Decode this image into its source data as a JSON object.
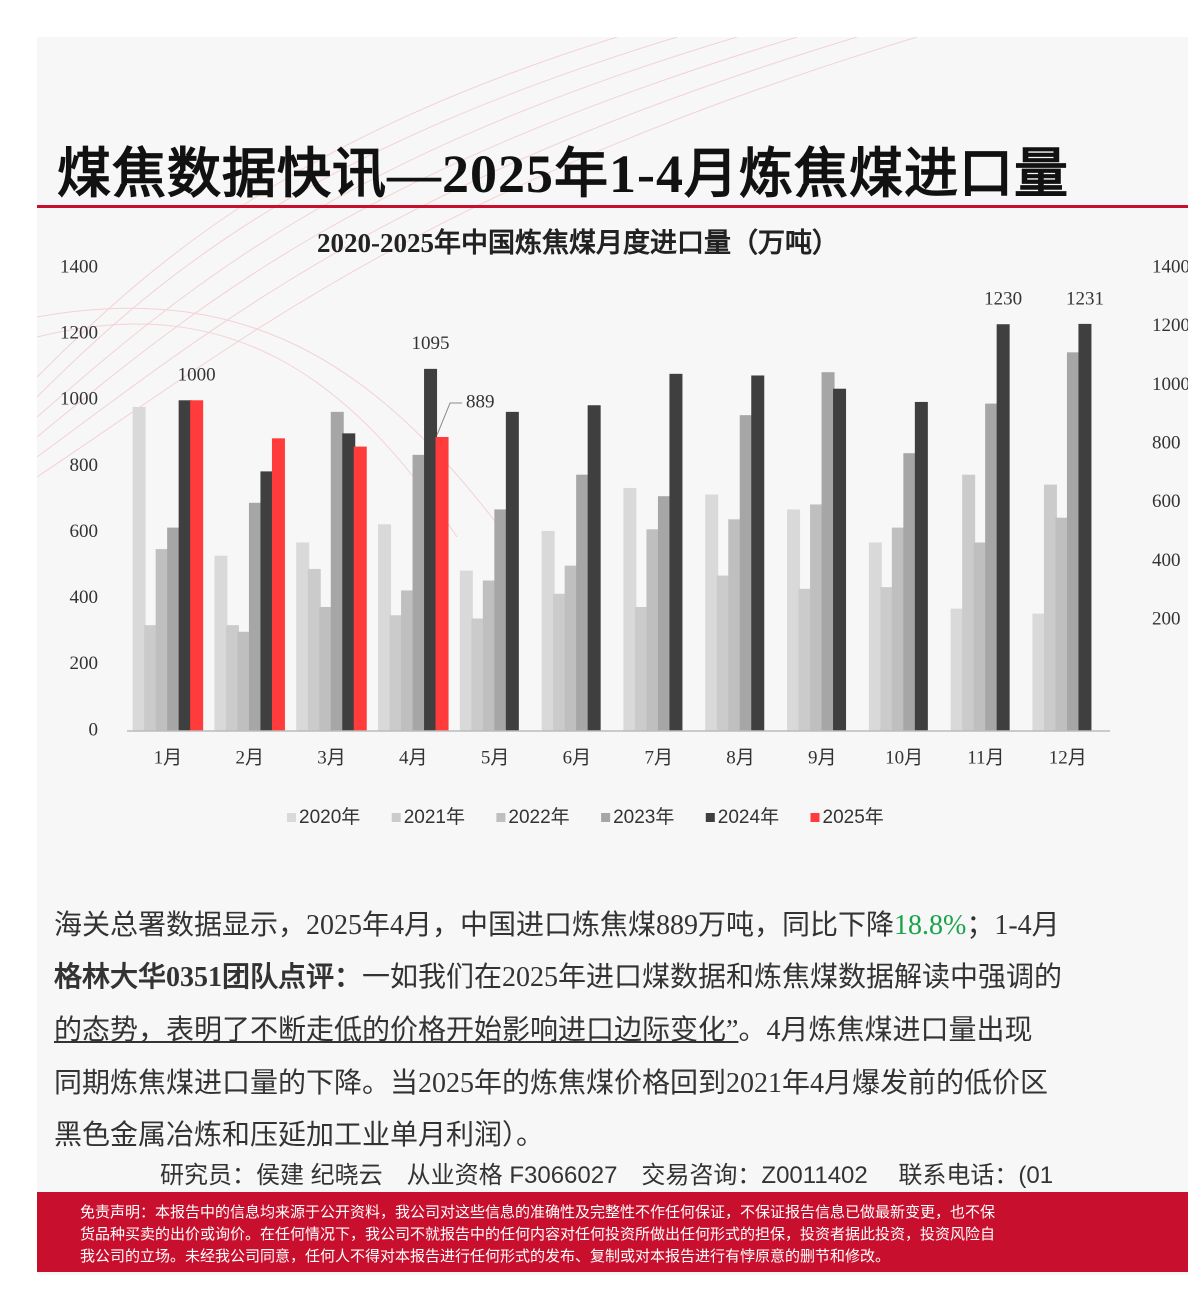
{
  "header": {
    "title": "煤焦数据快讯—2025年1-4月炼焦煤进口量"
  },
  "chart_data": [
    {
      "type": "bar",
      "title": "2020-2025年中国炼焦煤月度进口量（万吨）",
      "categories": [
        "1月",
        "2月",
        "3月",
        "4月",
        "5月",
        "6月",
        "7月",
        "8月",
        "9月",
        "10月",
        "11月",
        "12月"
      ],
      "series": [
        {
          "name": "2020年",
          "color": "#d9d9d9",
          "values": [
            980,
            530,
            570,
            625,
            485,
            605,
            735,
            715,
            670,
            570,
            370,
            355
          ]
        },
        {
          "name": "2021年",
          "color": "#cbcbcb",
          "values": [
            320,
            320,
            490,
            350,
            340,
            415,
            375,
            470,
            430,
            435,
            775,
            745
          ]
        },
        {
          "name": "2022年",
          "color": "#bfbfbf",
          "values": [
            550,
            300,
            375,
            425,
            455,
            500,
            610,
            640,
            685,
            615,
            570,
            645
          ]
        },
        {
          "name": "2023年",
          "color": "#a6a6a6",
          "values": [
            615,
            690,
            965,
            835,
            670,
            775,
            710,
            955,
            1085,
            840,
            990,
            1145
          ]
        },
        {
          "name": "2024年",
          "color": "#3f3f3f",
          "values": [
            1000,
            785,
            900,
            1095,
            965,
            985,
            1080,
            1075,
            1035,
            995,
            1230,
            1231
          ],
          "value_labels": [
            null,
            null,
            null,
            "1095",
            null,
            null,
            null,
            null,
            null,
            null,
            "1230",
            "1231"
          ]
        },
        {
          "name": "2025年",
          "color": "#ff3b3b",
          "values": [
            1000,
            885,
            860,
            889,
            null,
            null,
            null,
            null,
            null,
            null,
            null,
            null
          ],
          "value_labels": [
            "1000",
            null,
            null,
            "889",
            null,
            null,
            null,
            null,
            null,
            null,
            null,
            null
          ]
        }
      ],
      "ylim": [
        0,
        1400
      ],
      "yticks": [
        0,
        200,
        400,
        600,
        800,
        1000,
        1200,
        1400
      ],
      "legend": "bottom"
    },
    {
      "type": "bar",
      "ylim": [
        0,
        1400
      ],
      "yticks": [
        200,
        400,
        600,
        800,
        1000,
        1200,
        1400
      ]
    }
  ],
  "body": {
    "line1": [
      "海关总署数据显示，2025年4月，中国进口炼焦煤889万吨，同比下降",
      "18.8%",
      "；1-4月"
    ],
    "line2": [
      "格林大华0351团队点评：",
      "一如我们在2025年进口煤数据和炼焦煤数据解读中强调的"
    ],
    "line3": [
      "的态势，表明了不断走低的价格开始影响进口边际变化”",
      "。4月炼焦煤进口量出现"
    ],
    "line4": "同期炼焦煤进口量的下降。当2025年的炼焦煤价格回到2021年4月爆发前的低价区",
    "line5": "黑色金属冶炼和压延加工业单月利润）。"
  },
  "footer": {
    "contact": "研究员：侯建 纪晓云　从业资格 F3066027　交易咨询：Z0011402　 联系电话：(01",
    "disclaimer": [
      "免责声明：本报告中的信息均来源于公开资料，我公司对这些信息的准确性及完整性不作任何保证，不保证报告信息已做最新变更，也不保",
      "货品种买卖的出价或询价。在任何情况下，我公司不就报告中的任何内容对任何投资所做出任何形式的担保，投资者据此投资，投资风险自",
      "我公司的立场。未经我公司同意，任何人不得对本报告进行任何形式的发布、复制或对本报告进行有悖原意的删节和修改。"
    ]
  }
}
